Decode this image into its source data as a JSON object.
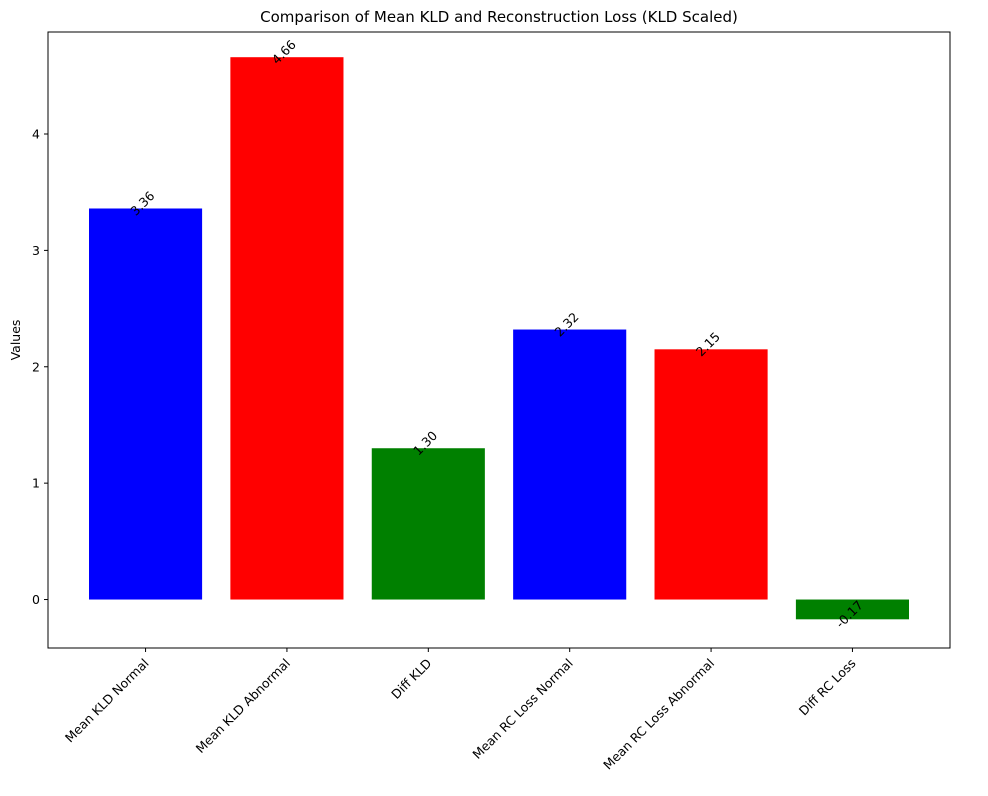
{
  "chart_data": {
    "type": "bar",
    "title": "Comparison of Mean KLD and Reconstruction Loss (KLD Scaled)",
    "xlabel": "",
    "ylabel": "Values",
    "categories": [
      "Mean KLD Normal",
      "Mean KLD Abnormal",
      "Diff KLD",
      "Mean RC Loss Normal",
      "Mean RC Loss Abnormal",
      "Diff RC Loss"
    ],
    "values": [
      3.36,
      4.66,
      1.3,
      2.32,
      2.15,
      -0.17
    ],
    "value_labels": [
      "3.36",
      "4.66",
      "1.30",
      "2.32",
      "2.15",
      "-0.17"
    ],
    "colors": [
      "#0000ff",
      "#ff0000",
      "#008000",
      "#0000ff",
      "#ff0000",
      "#008000"
    ],
    "ylim": [
      -0.4165,
      4.8765
    ],
    "yticks": [
      0,
      1,
      2,
      3,
      4
    ],
    "ytick_labels": [
      "0",
      "1",
      "2",
      "3",
      "4"
    ],
    "grid": false,
    "legend": "none"
  }
}
